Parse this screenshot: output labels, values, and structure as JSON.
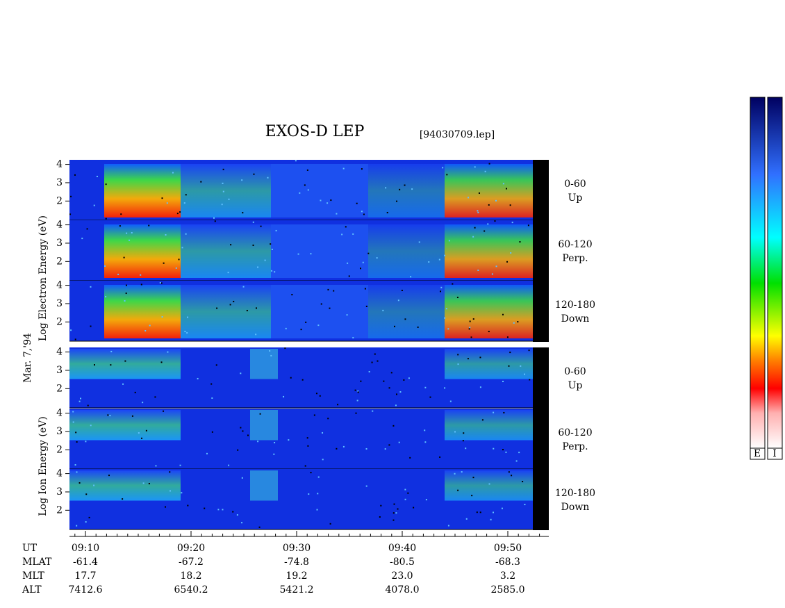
{
  "chart_data": {
    "type": "spectrogram",
    "title": "EXOS-D LEP",
    "subtitle": "[94030709.lep]",
    "date_label": "Mar. 7,'94",
    "groups": [
      {
        "ylabel": "Log  Electron  Energy (eV)",
        "panels": [
          {
            "label": "0-60",
            "sublabel": "Up",
            "ylim": [
              0.95,
              4.25
            ],
            "yticks": [
              2,
              3,
              4
            ]
          },
          {
            "label": "60-120",
            "sublabel": "Perp.",
            "ylim": [
              0.95,
              4.25
            ],
            "yticks": [
              2,
              3,
              4
            ]
          },
          {
            "label": "120-180",
            "sublabel": "Down",
            "ylim": [
              0.95,
              4.25
            ],
            "yticks": [
              2,
              3,
              4
            ]
          }
        ]
      },
      {
        "ylabel": "Log  Ion  Energy (eV)",
        "panels": [
          {
            "label": "0-60",
            "sublabel": "Up",
            "ylim": [
              0.95,
              4.25
            ],
            "yticks": [
              2,
              3,
              4
            ]
          },
          {
            "label": "60-120",
            "sublabel": "Perp.",
            "ylim": [
              0.95,
              4.25
            ],
            "yticks": [
              2,
              3,
              4
            ]
          },
          {
            "label": "120-180",
            "sublabel": "Down",
            "ylim": [
              0.95,
              4.25
            ],
            "yticks": [
              2,
              3,
              4
            ]
          }
        ]
      }
    ],
    "x_rows": [
      {
        "label": "UT",
        "values": [
          "09:10",
          "09:20",
          "09:30",
          "09:40",
          "09:50"
        ]
      },
      {
        "label": "MLAT",
        "values": [
          "-61.4",
          "-67.2",
          "-74.8",
          "-80.5",
          "-68.3"
        ]
      },
      {
        "label": "MLT",
        "values": [
          "17.7",
          "18.2",
          "19.2",
          "23.0",
          "3.2"
        ]
      },
      {
        "label": "ALT",
        "values": [
          "7412.6",
          "6540.2",
          "5421.2",
          "4078.0",
          "2585.0"
        ]
      }
    ],
    "colorbar_labels": [
      "E",
      "I"
    ]
  }
}
